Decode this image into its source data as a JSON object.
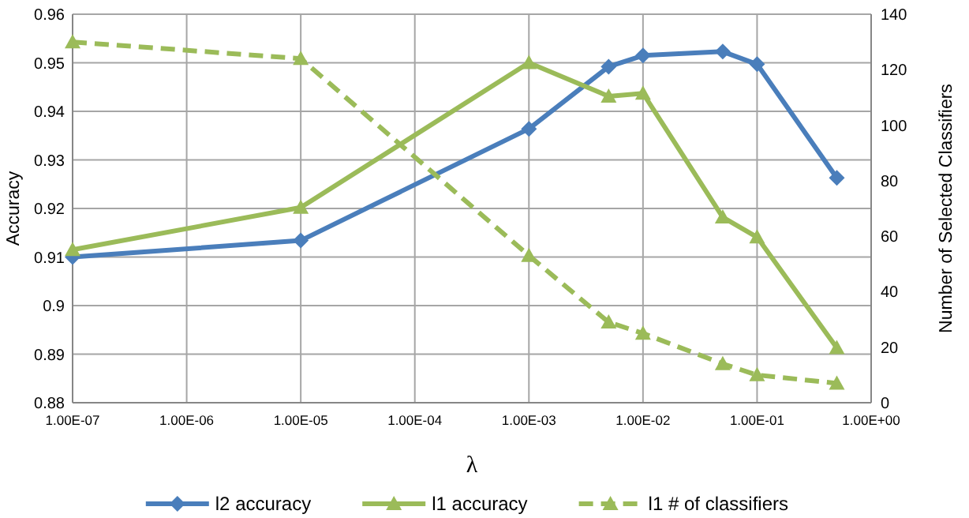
{
  "chart_data": {
    "type": "line",
    "xlabel": "λ",
    "ylabel": "Accuracy",
    "y2label": "Number of Selected Classifiers",
    "log": "x",
    "grid": true,
    "legend": "bottom",
    "xlim": [
      1e-07,
      1
    ],
    "xticks": [
      {
        "value": 1e-07,
        "label": "1.00E-07"
      },
      {
        "value": 1e-06,
        "label": "1.00E-06"
      },
      {
        "value": 1e-05,
        "label": "1.00E-05"
      },
      {
        "value": 0.0001,
        "label": "1.00E-04"
      },
      {
        "value": 0.001,
        "label": "1.00E-03"
      },
      {
        "value": 0.01,
        "label": "1.00E-02"
      },
      {
        "value": 0.1,
        "label": "1.00E-01"
      },
      {
        "value": 1,
        "label": "1.00E+00"
      }
    ],
    "ylim": [
      0.88,
      0.96
    ],
    "yticks": [
      0.88,
      0.89,
      0.9,
      0.91,
      0.92,
      0.93,
      0.94,
      0.95,
      0.96
    ],
    "y2lim": [
      0,
      140
    ],
    "y2ticks": [
      0,
      20,
      40,
      60,
      80,
      100,
      120,
      140
    ],
    "series": [
      {
        "name": "l2 accuracy",
        "color": "#4a7ebb",
        "marker": "diamond",
        "line_style": "solid",
        "x": [
          1e-07,
          1e-05,
          0.001,
          0.005,
          0.01,
          0.05,
          0.1,
          0.5
        ],
        "values": [
          0.91,
          0.9134,
          0.9364,
          0.9492,
          0.9515,
          0.9523,
          0.9497,
          0.9263
        ]
      },
      {
        "name": "l1 accuracy",
        "color": "#9bbb59",
        "marker": "triangle",
        "line_style": "solid",
        "x": [
          1e-07,
          1e-05,
          0.001,
          0.005,
          0.01,
          0.05,
          0.1,
          0.5
        ],
        "values": [
          0.9115,
          0.9202,
          0.95,
          0.9431,
          0.9437,
          0.9182,
          0.9141,
          0.8913
        ]
      },
      {
        "name": "l1 # of classifiers",
        "color": "#9bbb59",
        "marker": "triangle",
        "line_style": "dashed",
        "axis": "y2",
        "x": [
          1e-07,
          1e-05,
          0.001,
          0.005,
          0.01,
          0.05,
          0.1,
          0.5
        ],
        "values": [
          130,
          124,
          53,
          29,
          25,
          14,
          10,
          7
        ]
      }
    ]
  }
}
